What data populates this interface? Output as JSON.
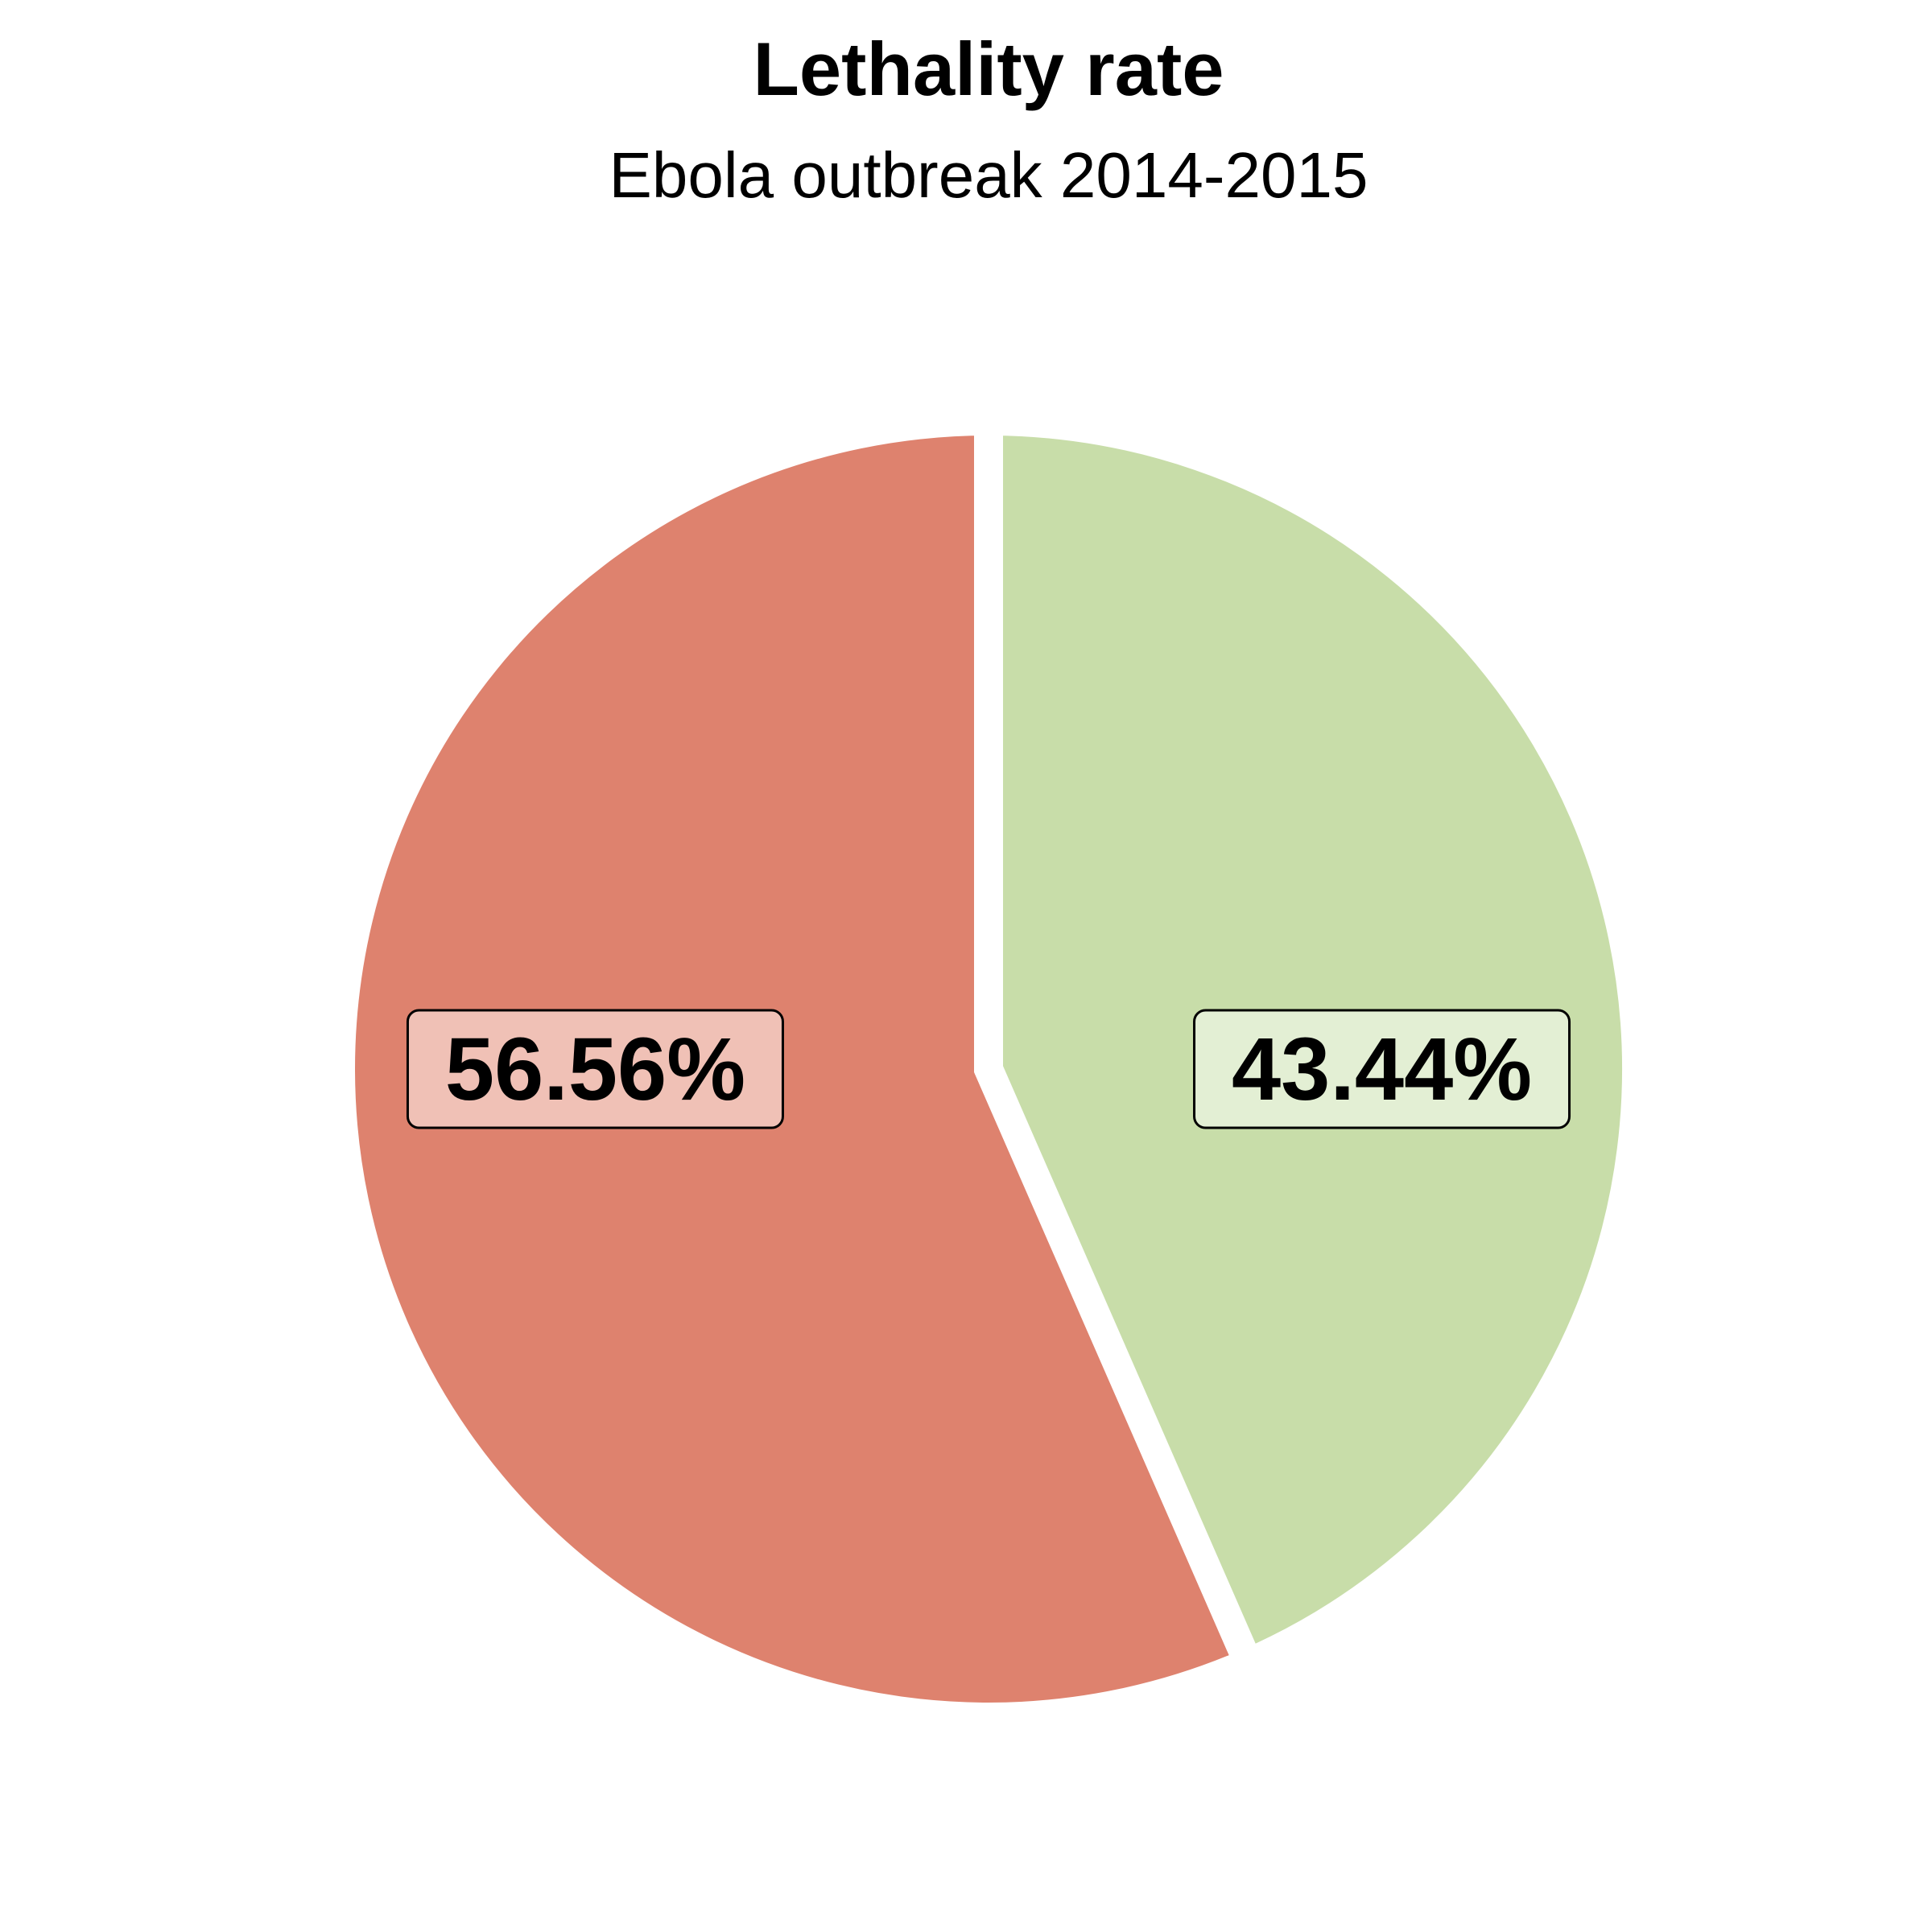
{
  "chart_data": {
    "type": "pie",
    "title": "Lethality rate",
    "subtitle": "Ebola outbreak 2014-2015",
    "values": [
      56.56,
      43.44
    ],
    "labels": [
      "56.56%",
      "43.44%"
    ],
    "colors": [
      "#DE826E",
      "#C8DDA9"
    ],
    "label_fill_colors": [
      "#F0C1B6",
      "#E3EFD4"
    ],
    "start_angle_deg": 0,
    "direction": "counterclockwise",
    "legend": "none"
  }
}
